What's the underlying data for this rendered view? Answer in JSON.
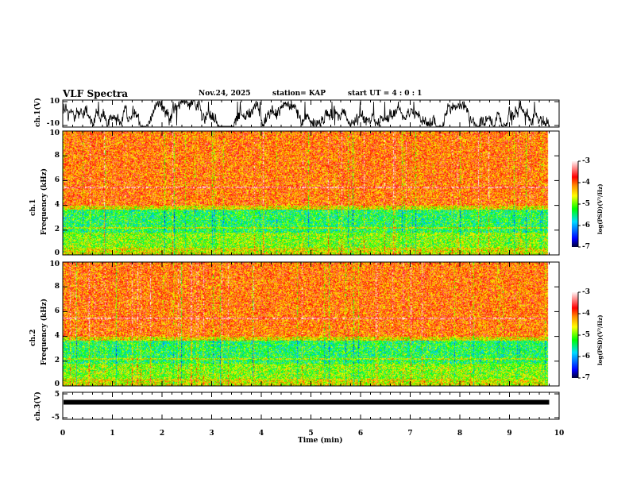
{
  "header": {
    "title": "VLF Spectra",
    "date": "Nov.24, 2025",
    "station": "station= KAP",
    "start": "start  UT =   4 : 0  : 1"
  },
  "chart_data": [
    {
      "type": "line",
      "name": "ch1 waveform",
      "ylabel": "ch.1(V)",
      "ylim": [
        -10,
        10
      ],
      "yticks": [
        "10",
        "-10"
      ],
      "xlim": [
        0,
        10
      ]
    },
    {
      "type": "heatmap",
      "name": "ch1 spectrogram",
      "ylabel": "ch.1\nFrequency (kHz)",
      "ylabel_ch": "ch.1",
      "ylabel_freq": "Frequency (kHz)",
      "ylim": [
        0,
        10
      ],
      "yticks": [
        "0",
        "2",
        "4",
        "6",
        "8",
        "10"
      ],
      "xlim": [
        0,
        10
      ],
      "data_end_min": 9.8,
      "colorbar": {
        "label": "log(PSD)(V²/Hz)",
        "range": [
          -7,
          -3
        ],
        "ticks": [
          "-3",
          "-4",
          "-5",
          "-6",
          "-7"
        ]
      }
    },
    {
      "type": "heatmap",
      "name": "ch2 spectrogram",
      "ylabel_ch": "ch.2",
      "ylabel_freq": "Frequency (kHz)",
      "ylim": [
        0,
        10
      ],
      "yticks": [
        "0",
        "2",
        "4",
        "6",
        "8",
        "10"
      ],
      "xlim": [
        0,
        10
      ],
      "data_end_min": 9.8,
      "colorbar": {
        "label": "log(PSD)(V²/Hz)",
        "range": [
          -7,
          -3
        ],
        "ticks": [
          "-3",
          "-4",
          "-5",
          "-6",
          "-7"
        ]
      }
    },
    {
      "type": "line",
      "name": "ch3 waveform",
      "ylabel": "ch.3(V)",
      "ylim": [
        -5,
        5
      ],
      "yticks": [
        "5",
        "-5"
      ],
      "approx_level": 1.5,
      "xlim": [
        0,
        10
      ]
    }
  ],
  "xaxis": {
    "label": "Time (min)",
    "ticks": [
      "0",
      "1",
      "2",
      "3",
      "4",
      "5",
      "6",
      "7",
      "8",
      "9",
      "10"
    ]
  }
}
